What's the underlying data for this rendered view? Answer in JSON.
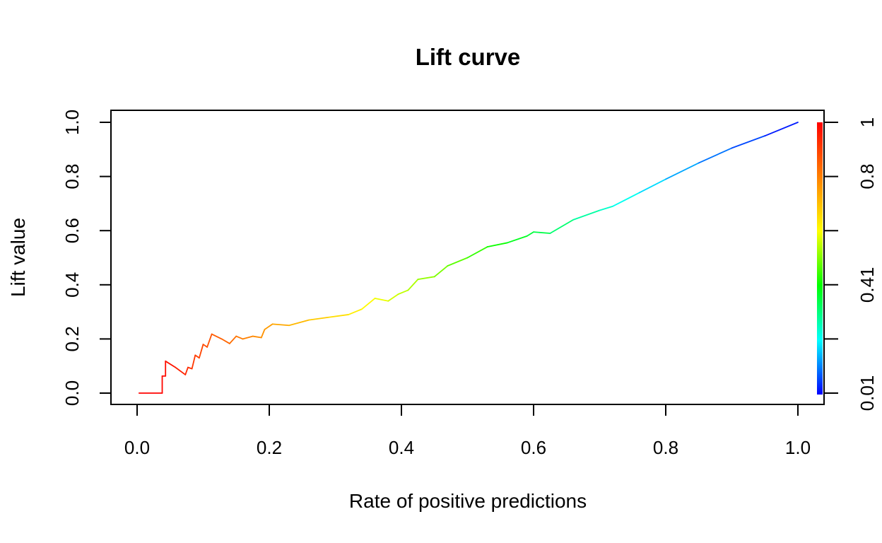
{
  "chart_data": {
    "type": "line",
    "title": "Lift curve",
    "xlabel": "Rate of positive predictions",
    "ylabel": "Lift value",
    "xlim": [
      0.0,
      1.0
    ],
    "ylim": [
      0.0,
      1.0
    ],
    "x_ticks": [
      "0.0",
      "0.2",
      "0.4",
      "0.6",
      "0.8",
      "1.0"
    ],
    "y_ticks": [
      "0.0",
      "0.2",
      "0.4",
      "0.6",
      "0.8",
      "1.0"
    ],
    "colorbar": {
      "range": [
        0.01,
        1.0
      ],
      "tick_labels": [
        "0.01",
        "0.41",
        "0.8",
        "1"
      ],
      "colormap": "rainbow",
      "colors": [
        "#0000ff",
        "#00ffff",
        "#00ff00",
        "#ffff00",
        "#ff8000",
        "#ff0000"
      ]
    },
    "grid": false,
    "legend": "none",
    "series": [
      {
        "points": [
          [
            0.003,
            0.0,
            1.0
          ],
          [
            0.038,
            0.0,
            0.99
          ],
          [
            0.038,
            0.063,
            0.99
          ],
          [
            0.043,
            0.063,
            0.98
          ],
          [
            0.043,
            0.118,
            0.98
          ],
          [
            0.058,
            0.095,
            0.96
          ],
          [
            0.073,
            0.068,
            0.94
          ],
          [
            0.077,
            0.095,
            0.93
          ],
          [
            0.083,
            0.09,
            0.92
          ],
          [
            0.088,
            0.14,
            0.91
          ],
          [
            0.094,
            0.13,
            0.9
          ],
          [
            0.1,
            0.18,
            0.89
          ],
          [
            0.106,
            0.17,
            0.88
          ],
          [
            0.113,
            0.218,
            0.87
          ],
          [
            0.128,
            0.2,
            0.85
          ],
          [
            0.14,
            0.183,
            0.84
          ],
          [
            0.15,
            0.21,
            0.82
          ],
          [
            0.16,
            0.2,
            0.81
          ],
          [
            0.175,
            0.21,
            0.79
          ],
          [
            0.188,
            0.205,
            0.78
          ],
          [
            0.193,
            0.235,
            0.77
          ],
          [
            0.205,
            0.255,
            0.75
          ],
          [
            0.23,
            0.25,
            0.73
          ],
          [
            0.26,
            0.27,
            0.7
          ],
          [
            0.29,
            0.28,
            0.67
          ],
          [
            0.32,
            0.29,
            0.64
          ],
          [
            0.34,
            0.31,
            0.62
          ],
          [
            0.36,
            0.35,
            0.6
          ],
          [
            0.38,
            0.34,
            0.58
          ],
          [
            0.395,
            0.365,
            0.56
          ],
          [
            0.41,
            0.38,
            0.55
          ],
          [
            0.425,
            0.42,
            0.53
          ],
          [
            0.45,
            0.43,
            0.51
          ],
          [
            0.47,
            0.47,
            0.49
          ],
          [
            0.5,
            0.5,
            0.46
          ],
          [
            0.53,
            0.54,
            0.43
          ],
          [
            0.56,
            0.555,
            0.4
          ],
          [
            0.59,
            0.58,
            0.37
          ],
          [
            0.6,
            0.595,
            0.36
          ],
          [
            0.625,
            0.59,
            0.34
          ],
          [
            0.66,
            0.64,
            0.3
          ],
          [
            0.7,
            0.675,
            0.26
          ],
          [
            0.72,
            0.69,
            0.24
          ],
          [
            0.76,
            0.74,
            0.2
          ],
          [
            0.8,
            0.79,
            0.16
          ],
          [
            0.85,
            0.85,
            0.12
          ],
          [
            0.9,
            0.905,
            0.08
          ],
          [
            0.95,
            0.95,
            0.05
          ],
          [
            1.0,
            1.0,
            0.01
          ]
        ]
      }
    ]
  }
}
